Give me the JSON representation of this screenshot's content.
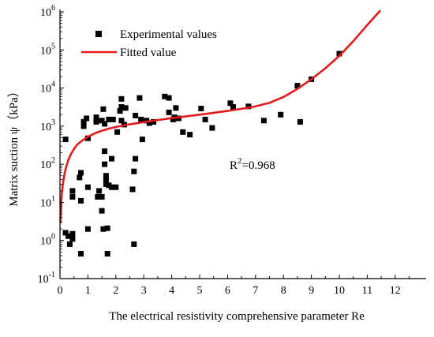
{
  "chart_data": {
    "type": "scatter",
    "xlabel": "The electrical resistivity comprehensive parameter Re",
    "ylabel": "Matrix suction ψ（kPa）",
    "xlim": [
      0,
      13
    ],
    "ylim_exponent": [
      -1,
      6
    ],
    "yscale": "log",
    "x_ticks": [
      0,
      1,
      2,
      3,
      4,
      5,
      6,
      7,
      8,
      9,
      10,
      11,
      12
    ],
    "y_ticks": [
      {
        "base": "10",
        "exp": "-1"
      },
      {
        "base": "10",
        "exp": "0"
      },
      {
        "base": "10",
        "exp": "1"
      },
      {
        "base": "10",
        "exp": "2"
      },
      {
        "base": "10",
        "exp": "3"
      },
      {
        "base": "10",
        "exp": "4"
      },
      {
        "base": "10",
        "exp": "5"
      },
      {
        "base": "10",
        "exp": "6"
      }
    ],
    "grid": false,
    "legend_position": "top-left",
    "legend": {
      "marker_label": "Experimental values",
      "line_label": "Fitted value"
    },
    "annotation": {
      "base": "R",
      "sup": "2",
      "rest": "=0.968"
    },
    "colors": {
      "points": "#000000",
      "fit": "#e31a1c",
      "axis": "#000000"
    },
    "series": [
      {
        "type": "scatter",
        "points": [
          [
            0.2,
            450
          ],
          [
            0.2,
            1.6
          ],
          [
            0.3,
            1.3
          ],
          [
            0.35,
            0.8
          ],
          [
            0.45,
            1.5
          ],
          [
            0.45,
            1.1
          ],
          [
            0.45,
            20
          ],
          [
            0.45,
            14
          ],
          [
            0.7,
            45
          ],
          [
            0.75,
            60
          ],
          [
            0.75,
            11
          ],
          [
            0.75,
            0.45
          ],
          [
            0.85,
            1300
          ],
          [
            0.85,
            1000
          ],
          [
            0.95,
            1600
          ],
          [
            1.0,
            480
          ],
          [
            1.0,
            2.0
          ],
          [
            1.0,
            25
          ],
          [
            1.3,
            1700
          ],
          [
            1.3,
            1300
          ],
          [
            1.35,
            14
          ],
          [
            1.4,
            20
          ],
          [
            1.5,
            1400
          ],
          [
            1.5,
            14
          ],
          [
            1.5,
            6
          ],
          [
            1.55,
            2800
          ],
          [
            1.55,
            2.0
          ],
          [
            1.6,
            1150
          ],
          [
            1.6,
            220
          ],
          [
            1.6,
            100
          ],
          [
            1.65,
            50
          ],
          [
            1.65,
            40
          ],
          [
            1.65,
            30
          ],
          [
            1.7,
            0.45
          ],
          [
            1.7,
            2.1
          ],
          [
            1.75,
            1500
          ],
          [
            1.75,
            28
          ],
          [
            1.85,
            140
          ],
          [
            1.85,
            25
          ],
          [
            1.9,
            1500
          ],
          [
            2.0,
            25
          ],
          [
            2.05,
            700
          ],
          [
            2.15,
            2500
          ],
          [
            2.2,
            5200
          ],
          [
            2.2,
            3200
          ],
          [
            2.2,
            1400
          ],
          [
            2.3,
            1100
          ],
          [
            2.35,
            3000
          ],
          [
            2.6,
            22
          ],
          [
            2.65,
            65
          ],
          [
            2.65,
            0.8
          ],
          [
            2.7,
            140
          ],
          [
            2.7,
            1900
          ],
          [
            2.85,
            5500
          ],
          [
            2.9,
            1500
          ],
          [
            2.95,
            450
          ],
          [
            3.1,
            1400
          ],
          [
            3.2,
            1200
          ],
          [
            3.35,
            1300
          ],
          [
            3.75,
            6000
          ],
          [
            3.9,
            5500
          ],
          [
            3.9,
            2300
          ],
          [
            4.05,
            1500
          ],
          [
            4.1,
            1700
          ],
          [
            4.15,
            3000
          ],
          [
            4.25,
            1600
          ],
          [
            4.4,
            700
          ],
          [
            4.65,
            600
          ],
          [
            5.05,
            2900
          ],
          [
            5.2,
            1500
          ],
          [
            5.45,
            900
          ],
          [
            6.1,
            4000
          ],
          [
            6.2,
            3200
          ],
          [
            6.75,
            3300
          ],
          [
            7.3,
            1400
          ],
          [
            7.9,
            2000
          ],
          [
            8.5,
            11500
          ],
          [
            8.6,
            1300
          ],
          [
            9.0,
            17000
          ],
          [
            10.0,
            80000
          ]
        ]
      },
      {
        "type": "line",
        "name": "Fitted value",
        "points": [
          [
            0.02,
            3
          ],
          [
            0.04,
            8
          ],
          [
            0.06,
            15
          ],
          [
            0.1,
            28
          ],
          [
            0.15,
            50
          ],
          [
            0.2,
            75
          ],
          [
            0.3,
            130
          ],
          [
            0.4,
            190
          ],
          [
            0.5,
            250
          ],
          [
            0.6,
            320
          ],
          [
            0.8,
            420
          ],
          [
            1.0,
            530
          ],
          [
            1.25,
            650
          ],
          [
            1.5,
            760
          ],
          [
            1.75,
            860
          ],
          [
            2.0,
            950
          ],
          [
            2.5,
            1120
          ],
          [
            3.0,
            1280
          ],
          [
            3.5,
            1450
          ],
          [
            4.0,
            1620
          ],
          [
            4.5,
            1800
          ],
          [
            5.0,
            2000
          ],
          [
            5.5,
            2250
          ],
          [
            6.0,
            2500
          ],
          [
            6.5,
            2850
          ],
          [
            7.0,
            3300
          ],
          [
            7.5,
            4100
          ],
          [
            8.0,
            5800
          ],
          [
            8.5,
            9500
          ],
          [
            9.0,
            17000
          ],
          [
            9.5,
            33000
          ],
          [
            10.0,
            70000
          ],
          [
            10.5,
            170000
          ],
          [
            11.0,
            450000
          ],
          [
            11.45,
            1050000
          ]
        ]
      }
    ]
  }
}
